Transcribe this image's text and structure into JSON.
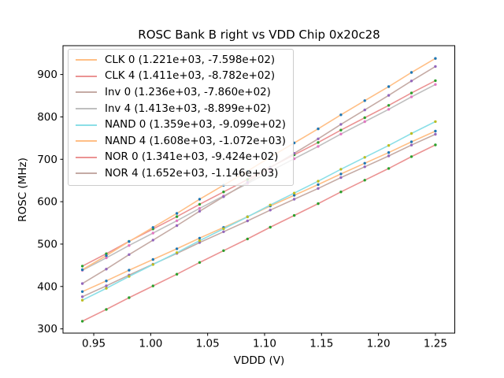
{
  "figure": {
    "title": "ROSC Bank B right vs VDD Chip 0x20c28"
  },
  "chart_data": {
    "type": "line",
    "title": "ROSC Bank B right vs VDD Chip 0x20c28",
    "xlabel": "VDDD (V)",
    "ylabel": "ROSC (MHz)",
    "xlim": [
      0.923,
      1.267
    ],
    "ylim": [
      290,
      968
    ],
    "grid": false,
    "legend_position": "upper left",
    "x_ticks": [
      {
        "v": 0.95,
        "label": "0.95"
      },
      {
        "v": 1.0,
        "label": "1.00"
      },
      {
        "v": 1.05,
        "label": "1.05"
      },
      {
        "v": 1.1,
        "label": "1.10"
      },
      {
        "v": 1.15,
        "label": "1.15"
      },
      {
        "v": 1.2,
        "label": "1.20"
      },
      {
        "v": 1.25,
        "label": "1.25"
      }
    ],
    "y_ticks": [
      {
        "v": 300,
        "label": "300"
      },
      {
        "v": 400,
        "label": "400"
      },
      {
        "v": 500,
        "label": "500"
      },
      {
        "v": 600,
        "label": "600"
      },
      {
        "v": 700,
        "label": "700"
      },
      {
        "v": 800,
        "label": "800"
      },
      {
        "v": 900,
        "label": "900"
      }
    ],
    "x": [
      0.94,
      0.961,
      0.981,
      1.002,
      1.023,
      1.043,
      1.064,
      1.085,
      1.105,
      1.126,
      1.147,
      1.167,
      1.188,
      1.209,
      1.229,
      1.25
    ],
    "series": [
      {
        "name": "CLK 0",
        "label": "CLK 0 (1.221e+03, -7.598e+02)",
        "slope": 1221,
        "intercept": -759.8,
        "line_color": "#ffbf86",
        "marker_color": "#1f77b4",
        "y": [
          387.9,
          413.2,
          438.4,
          463.6,
          488.9,
          514.1,
          539.3,
          564.6,
          589.8,
          615.0,
          640.3,
          665.5,
          690.7,
          716.0,
          741.2,
          766.5
        ]
      },
      {
        "name": "CLK 4",
        "label": "CLK 4 (1.411e+03, -8.782e+02)",
        "slope": 1411,
        "intercept": -878.2,
        "line_color": "#eb9393",
        "marker_color": "#2ca02c",
        "y": [
          448.1,
          477.3,
          506.5,
          535.6,
          564.8,
          593.9,
          623.1,
          652.2,
          681.4,
          710.5,
          739.7,
          768.9,
          798.0,
          827.2,
          856.3,
          885.6
        ]
      },
      {
        "name": "Inv 0",
        "label": "Inv 0 (1.236e+03, -7.860e+02)",
        "slope": 1236,
        "intercept": -786.0,
        "line_color": "#c5aba5",
        "marker_color": "#9467bd",
        "y": [
          375.8,
          401.4,
          426.9,
          452.5,
          478.0,
          503.6,
          529.1,
          554.7,
          580.2,
          605.8,
          631.3,
          656.9,
          682.4,
          708.0,
          733.5,
          759.0
        ]
      },
      {
        "name": "Inv 4",
        "label": "Inv 4 (1.413e+03, -8.899e+02)",
        "slope": 1413,
        "intercept": -889.9,
        "line_color": "#bfbfbf",
        "marker_color": "#e377c2",
        "y": [
          438.3,
          467.5,
          496.7,
          525.9,
          555.1,
          584.3,
          613.6,
          642.8,
          672.0,
          701.2,
          730.4,
          759.6,
          788.8,
          818.0,
          847.2,
          876.4
        ]
      },
      {
        "name": "NAND 0",
        "label": "NAND 0 (1.359e+03, -9.099e+02)",
        "slope": 1359,
        "intercept": -909.9,
        "line_color": "#8bdfe7",
        "marker_color": "#bcbd22",
        "y": [
          367.6,
          395.7,
          423.7,
          451.8,
          479.9,
          508.0,
          536.1,
          564.2,
          592.2,
          620.3,
          648.4,
          676.5,
          704.6,
          732.7,
          760.8,
          788.9
        ]
      },
      {
        "name": "NAND 4",
        "label": "NAND 4 (1.608e+03, -1.072e+03)",
        "slope": 1608,
        "intercept": -1072,
        "line_color": "#ffbf86",
        "marker_color": "#1f77b4",
        "y": [
          439.5,
          472.8,
          506.0,
          539.2,
          572.4,
          605.7,
          638.9,
          672.1,
          705.4,
          738.6,
          771.8,
          805.0,
          838.3,
          871.5,
          904.8,
          938.0
        ]
      },
      {
        "name": "NOR 0",
        "label": "NOR 0 (1.341e+03, -9.424e+02)",
        "slope": 1341,
        "intercept": -942.4,
        "line_color": "#eb9393",
        "marker_color": "#2ca02c",
        "y": [
          318.1,
          345.9,
          373.6,
          401.3,
          429.0,
          456.7,
          484.4,
          512.2,
          539.9,
          567.6,
          595.3,
          623.0,
          650.7,
          678.5,
          706.2,
          733.9
        ]
      },
      {
        "name": "NOR 4",
        "label": "NOR 4 (1.652e+03, -1.146e+03)",
        "slope": 1652,
        "intercept": -1146,
        "line_color": "#c5aba5",
        "marker_color": "#9467bd",
        "y": [
          406.9,
          441.0,
          475.2,
          509.3,
          543.5,
          577.6,
          611.7,
          645.9,
          680.0,
          714.1,
          748.3,
          782.4,
          816.5,
          850.7,
          884.8,
          919.0
        ]
      }
    ]
  }
}
